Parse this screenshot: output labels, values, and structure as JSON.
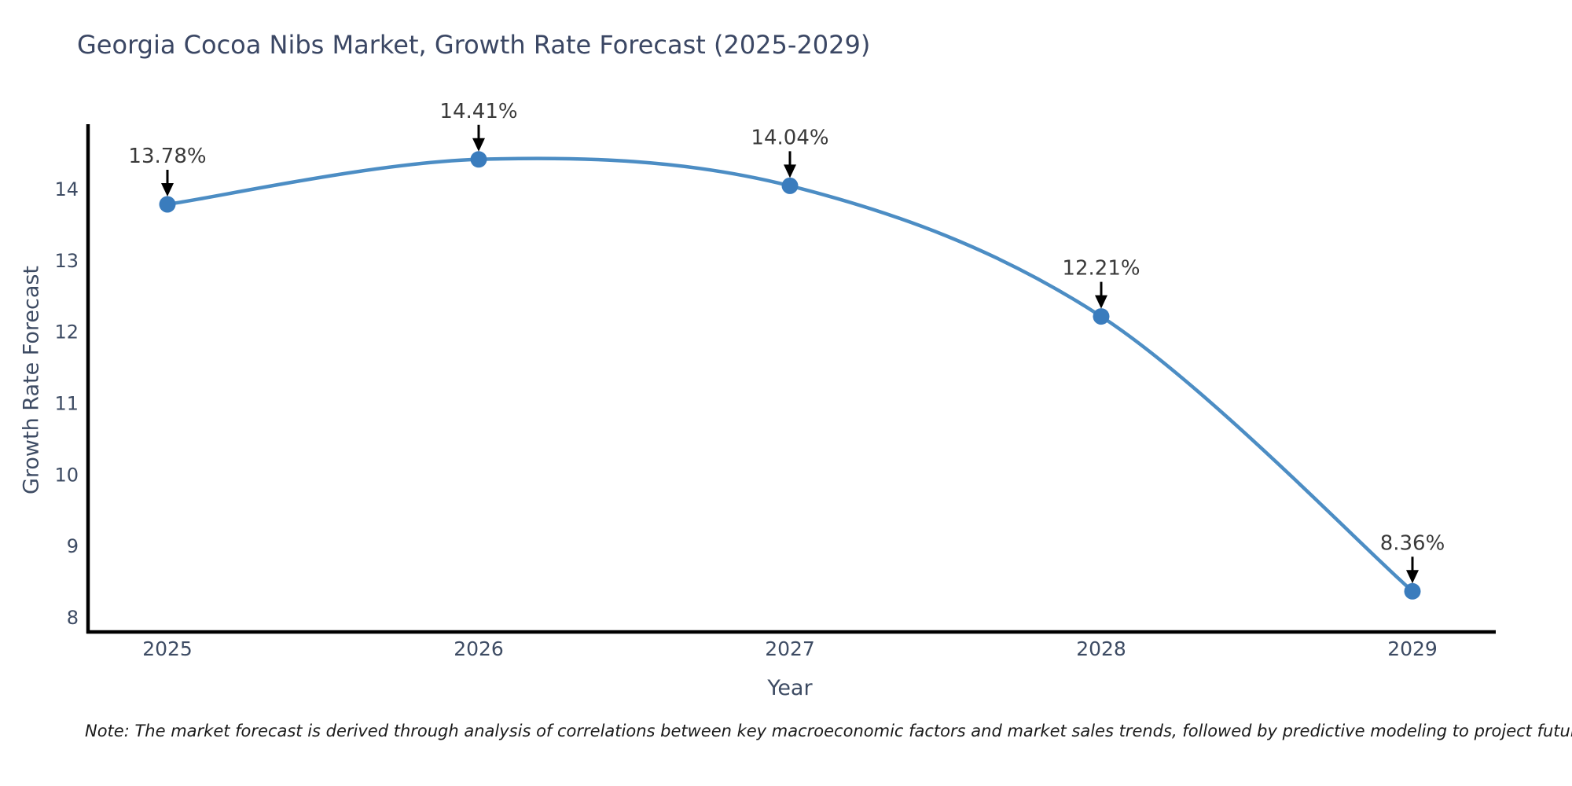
{
  "title": "Georgia Cocoa Nibs Market, Growth Rate Forecast (2025-2029)",
  "note": "Note: The market forecast is derived through analysis of correlations between key macroeconomic factors and market sales trends, followed by predictive modeling to project future sales",
  "chart_data": {
    "type": "line",
    "x": [
      2025,
      2026,
      2027,
      2028,
      2029
    ],
    "values": [
      13.78,
      14.41,
      14.04,
      12.21,
      8.36
    ],
    "point_labels": [
      "13.78%",
      "14.41%",
      "14.04%",
      "12.21%",
      "8.36%"
    ],
    "title": "Georgia Cocoa Nibs Market, Growth Rate Forecast (2025-2029)",
    "xlabel": "Year",
    "ylabel": "Growth Rate Forecast",
    "xticklabels": [
      "2025",
      "2026",
      "2027",
      "2028",
      "2029"
    ],
    "yticks": [
      8,
      9,
      10,
      11,
      12,
      13,
      14
    ],
    "ylim": [
      7.8,
      15.1
    ],
    "grid": false,
    "legend": "none",
    "line_color": "#4c8dc4",
    "marker_color": "#3a7cbd",
    "annotation_text_color": "#3a3a3a",
    "annotation_arrow_color": "#000000",
    "axis_spine_color": "#000000",
    "axis_text_color": "#3d4b63"
  }
}
